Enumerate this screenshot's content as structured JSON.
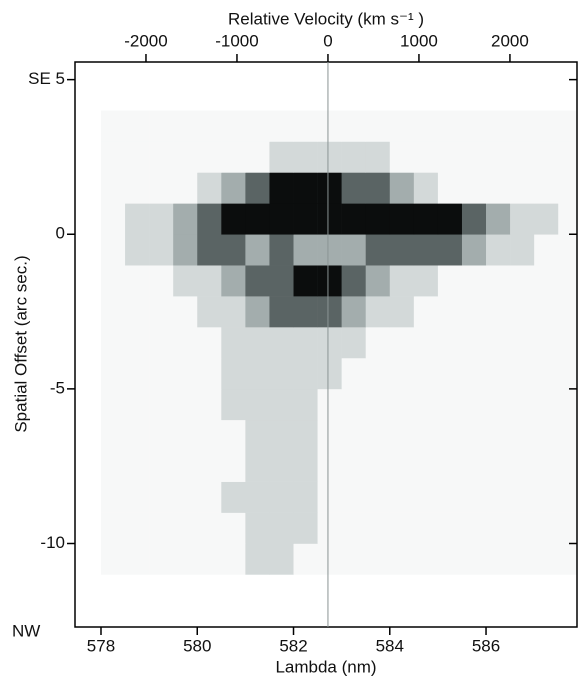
{
  "chart_data": {
    "type": "heatmap",
    "x2label": "Relative Velocity (km s⁻¹ )",
    "xlabel": "Lambda (nm)",
    "ylabel": "Spatial Offset (arc sec.)",
    "annotation": "NW",
    "xlim": [
      577.46,
      587.89
    ],
    "xticks": [
      578,
      580,
      582,
      584,
      586
    ],
    "x2lim": [
      -2780,
      2737
    ],
    "x2ticks": [
      -2000,
      -1000,
      0,
      1000,
      2000
    ],
    "ylim": [
      -12.7,
      5.57
    ],
    "yticks": [
      {
        "value": 5,
        "label": "SE 5"
      },
      0,
      -5,
      -10
    ],
    "colorscale": [
      "#f7f8f8",
      "#d3d9d9",
      "#a3adad",
      "#5a6464",
      "#0b0d0d"
    ],
    "xbins": [
      578,
      578.5,
      579,
      579.5,
      580,
      580.5,
      581,
      581.5,
      582,
      582.5,
      583,
      583.5,
      584,
      584.5,
      585,
      585.5,
      586,
      586.5,
      587,
      587.5,
      588
    ],
    "ybins": [
      -11,
      -10,
      -9,
      -8,
      -7,
      -6,
      -5,
      -4,
      -3,
      -2,
      -1,
      0,
      1,
      2,
      3,
      4
    ],
    "z": [
      [
        0,
        0,
        0,
        0,
        0,
        0,
        1,
        1,
        0,
        0,
        0,
        0,
        0,
        0,
        0,
        0,
        0,
        0,
        0,
        0
      ],
      [
        0,
        0,
        0,
        0,
        0,
        0,
        1,
        1,
        1,
        0,
        0,
        0,
        0,
        0,
        0,
        0,
        0,
        0,
        0,
        0
      ],
      [
        0,
        0,
        0,
        0,
        0,
        1,
        1,
        1,
        1,
        0,
        0,
        0,
        0,
        0,
        0,
        0,
        0,
        0,
        0,
        0
      ],
      [
        0,
        0,
        0,
        0,
        0,
        0,
        1,
        1,
        1,
        0,
        0,
        0,
        0,
        0,
        0,
        0,
        0,
        0,
        0,
        0
      ],
      [
        0,
        0,
        0,
        0,
        0,
        0,
        1,
        1,
        1,
        0,
        0,
        0,
        0,
        0,
        0,
        0,
        0,
        0,
        0,
        0
      ],
      [
        0,
        0,
        0,
        0,
        0,
        1,
        1,
        1,
        1,
        0,
        0,
        0,
        0,
        0,
        0,
        0,
        0,
        0,
        0,
        0
      ],
      [
        0,
        0,
        0,
        0,
        0,
        1,
        1,
        1,
        1,
        1,
        0,
        0,
        0,
        0,
        0,
        0,
        0,
        0,
        0,
        0
      ],
      [
        0,
        0,
        0,
        0,
        0,
        1,
        1,
        1,
        1,
        1,
        1,
        0,
        0,
        0,
        0,
        0,
        0,
        0,
        0,
        0
      ],
      [
        0,
        0,
        0,
        0,
        1,
        1,
        2,
        3,
        3,
        3,
        2,
        1,
        1,
        0,
        0,
        0,
        0,
        0,
        0,
        0
      ],
      [
        0,
        0,
        0,
        1,
        1,
        2,
        3,
        3,
        4,
        4,
        3,
        2,
        1,
        1,
        0,
        0,
        0,
        0,
        0,
        0
      ],
      [
        0,
        1,
        1,
        2,
        3,
        3,
        2,
        3,
        2,
        2,
        2,
        3,
        3,
        3,
        3,
        2,
        1,
        1,
        0,
        0
      ],
      [
        0,
        1,
        1,
        2,
        3,
        4,
        4,
        4,
        4,
        4,
        4,
        4,
        4,
        4,
        4,
        3,
        2,
        1,
        1,
        0
      ],
      [
        0,
        0,
        0,
        0,
        1,
        2,
        3,
        4,
        4,
        4,
        3,
        3,
        2,
        1,
        0,
        0,
        0,
        0,
        0,
        0
      ],
      [
        0,
        0,
        0,
        0,
        0,
        0,
        0,
        1,
        1,
        1,
        1,
        1,
        0,
        0,
        0,
        0,
        0,
        0,
        0,
        0
      ],
      [
        0,
        0,
        0,
        0,
        0,
        0,
        0,
        0,
        0,
        0,
        0,
        0,
        0,
        0,
        0,
        0,
        0,
        0,
        0,
        0
      ]
    ]
  }
}
